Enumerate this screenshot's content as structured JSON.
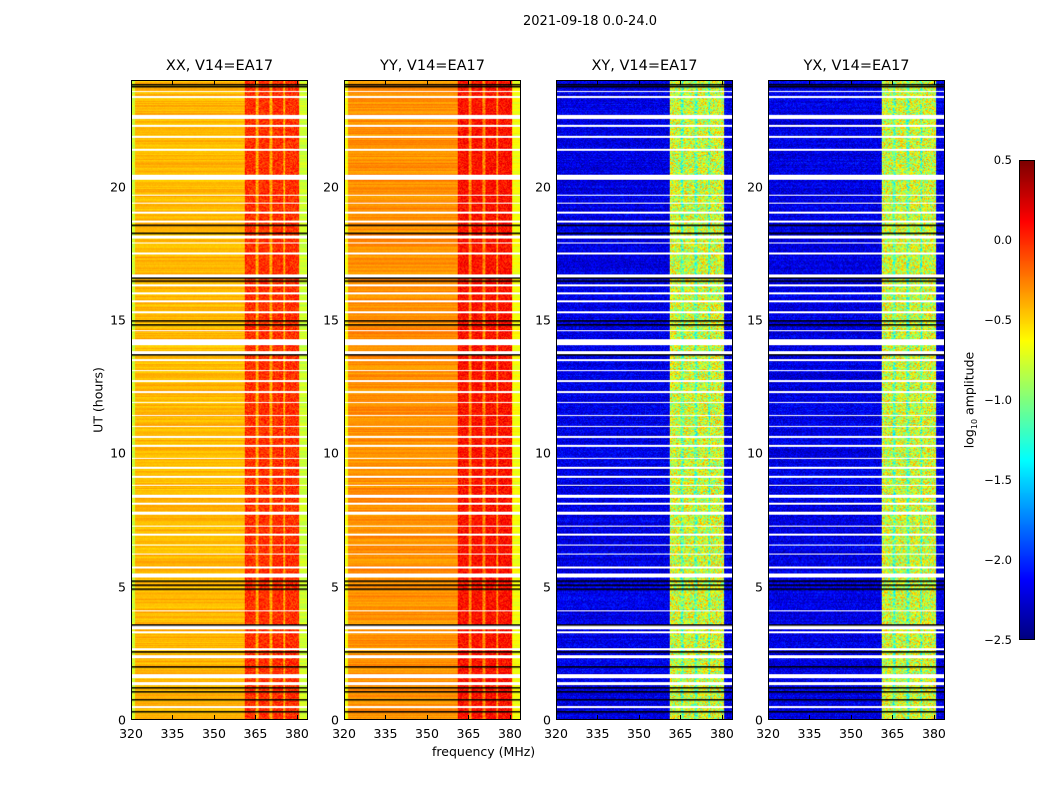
{
  "chart_data": {
    "type": "heatmap",
    "title": "2021-09-18 0.0-24.0",
    "xlabel": "frequency (MHz)",
    "ylabel": "UT (hours)",
    "xlim": [
      320,
      384
    ],
    "ylim": [
      0,
      24
    ],
    "xticks": [
      "320",
      "335",
      "350",
      "365",
      "380"
    ],
    "xtick_values": [
      320,
      335,
      350,
      365,
      380
    ],
    "yticks": [
      "0",
      "5",
      "10",
      "15",
      "20"
    ],
    "ytick_values": [
      0,
      5,
      10,
      15,
      20
    ],
    "colormap": "jet",
    "colorbar": {
      "label_prefix": "log",
      "label_sub": "10",
      "label_suffix": " amplitude",
      "range": [
        -2.5,
        0.5
      ],
      "ticks": [
        "0.5",
        "0.0",
        "−0.5",
        "−1.0",
        "−1.5",
        "−2.0",
        "−2.5"
      ],
      "tick_values": [
        0.5,
        0.0,
        -0.5,
        -1.0,
        -1.5,
        -2.0,
        -2.5
      ]
    },
    "rfi_band_mhz": [
      361,
      381
    ],
    "rfi_gaps_mhz": [
      365.5,
      370.5,
      375.5
    ],
    "flagged_hours": [
      [
        0.45,
        0.52
      ],
      [
        1.3,
        1.42
      ],
      [
        1.55,
        1.72
      ],
      [
        2.3,
        2.4
      ],
      [
        2.62,
        2.7
      ],
      [
        3.25,
        3.32
      ],
      [
        3.4,
        3.6
      ],
      [
        4.05,
        4.1
      ],
      [
        5.35,
        5.5
      ],
      [
        5.7,
        5.75
      ],
      [
        6.2,
        6.25
      ],
      [
        6.55,
        6.6
      ],
      [
        6.9,
        7.0
      ],
      [
        7.25,
        7.3
      ],
      [
        7.7,
        7.8
      ],
      [
        8.1,
        8.15
      ],
      [
        8.35,
        8.45
      ],
      [
        8.8,
        8.85
      ],
      [
        9.1,
        9.15
      ],
      [
        9.45,
        9.5
      ],
      [
        9.8,
        9.85
      ],
      [
        10.25,
        10.35
      ],
      [
        10.6,
        10.65
      ],
      [
        11.0,
        11.05
      ],
      [
        11.4,
        11.45
      ],
      [
        11.9,
        11.95
      ],
      [
        12.3,
        12.35
      ],
      [
        12.7,
        12.75
      ],
      [
        13.1,
        13.15
      ],
      [
        13.5,
        13.55
      ],
      [
        13.75,
        13.85
      ],
      [
        14.1,
        14.3
      ],
      [
        14.6,
        14.65
      ],
      [
        15.3,
        15.35
      ],
      [
        15.7,
        15.75
      ],
      [
        16.0,
        16.05
      ],
      [
        16.3,
        16.35
      ],
      [
        16.65,
        16.75
      ],
      [
        17.5,
        17.55
      ],
      [
        17.9,
        17.95
      ],
      [
        18.1,
        18.2
      ],
      [
        18.7,
        18.75
      ],
      [
        19.05,
        19.1
      ],
      [
        19.4,
        19.45
      ],
      [
        19.7,
        19.75
      ],
      [
        20.3,
        20.5
      ],
      [
        21.4,
        21.45
      ],
      [
        21.9,
        21.95
      ],
      [
        22.3,
        22.35
      ],
      [
        22.6,
        22.75
      ],
      [
        23.4,
        23.45
      ],
      [
        23.6,
        23.65
      ]
    ],
    "black_line_hours": [
      0.3,
      0.75,
      1.05,
      1.2,
      2.0,
      2.55,
      3.55,
      4.9,
      5.05,
      5.2,
      13.72,
      14.85,
      15.0,
      16.5,
      16.62,
      18.3,
      18.6,
      23.8,
      23.9
    ],
    "panels": [
      {
        "title": "XX, V14=EA17",
        "base_log_amp": -0.42,
        "rfi_log_amp": -0.02
      },
      {
        "title": "YY, V14=EA17",
        "base_log_amp": -0.3,
        "rfi_log_amp": 0.08
      },
      {
        "title": "XY, V14=EA17",
        "base_log_amp": -2.2,
        "rfi_log_amp": -0.75
      },
      {
        "title": "YX, V14=EA17",
        "base_log_amp": -2.2,
        "rfi_log_amp": -0.75
      }
    ]
  }
}
